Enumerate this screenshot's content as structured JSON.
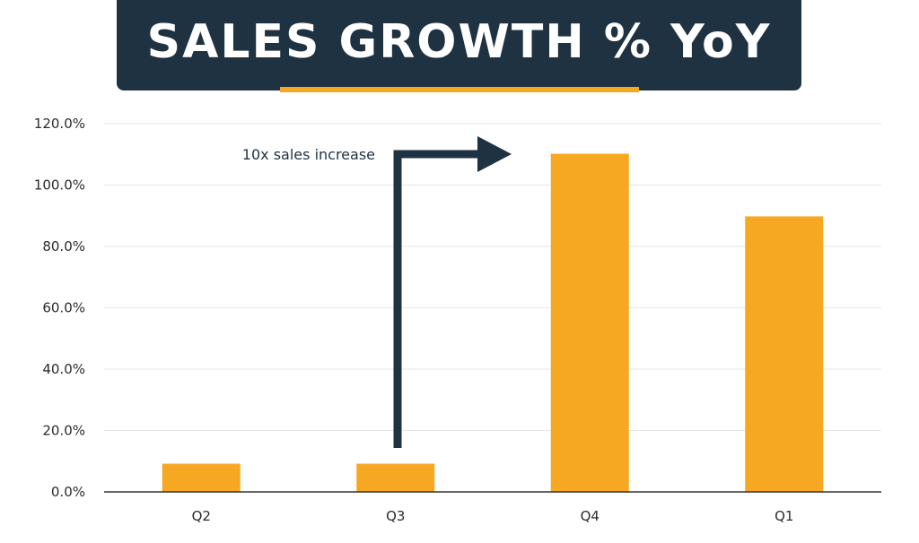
{
  "chart_data": {
    "type": "bar",
    "title": "SALES GROWTH % YoY",
    "categories": [
      "Q2",
      "Q3",
      "Q4",
      "Q1"
    ],
    "values": [
      9.2,
      9.2,
      110.2,
      89.8
    ],
    "ylim": [
      0,
      120
    ],
    "yticks": [
      "0.0%",
      "20.0%",
      "40.0%",
      "60.0%",
      "80.0%",
      "100.0%",
      "120.0%"
    ],
    "grid": true,
    "annotation": "10x sales increase",
    "colors": {
      "bar": "#f7a823",
      "banner": "#1e3242",
      "arrow": "#1e3242",
      "grid": "#e6e6e6",
      "axis": "#333333"
    }
  }
}
